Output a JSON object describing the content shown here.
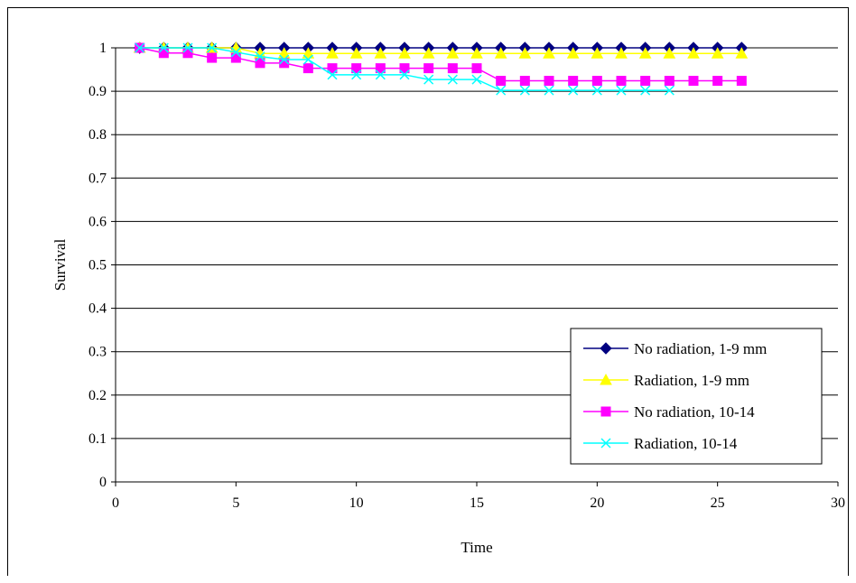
{
  "chart_data": {
    "type": "line",
    "xlabel": "Time",
    "ylabel": "Survival",
    "xlim": [
      0,
      30
    ],
    "ylim": [
      0,
      1
    ],
    "xticks": [
      "0",
      "5",
      "10",
      "15",
      "20",
      "25",
      "30"
    ],
    "yticks": [
      "0",
      "0.1",
      "0.2",
      "0.3",
      "0.4",
      "0.5",
      "0.6",
      "0.7",
      "0.8",
      "0.9",
      "1"
    ],
    "grid": "horizontal",
    "legend_position": "bottom-right",
    "series": [
      {
        "name": "No radiation, 1-9 mm",
        "color": "#000080",
        "marker": "diamond",
        "x": [
          1,
          2,
          3,
          4,
          5,
          6,
          7,
          8,
          9,
          10,
          11,
          12,
          13,
          14,
          15,
          16,
          17,
          18,
          19,
          20,
          21,
          22,
          23,
          24,
          25,
          26
        ],
        "y": [
          1,
          1,
          1,
          1,
          1,
          1,
          1,
          1,
          1,
          1,
          1,
          1,
          1,
          1,
          1,
          1,
          1,
          1,
          1,
          1,
          1,
          1,
          1,
          1,
          1,
          1
        ]
      },
      {
        "name": "Radiation, 1-9 mm",
        "color": "#FFFF00",
        "marker": "triangle",
        "x": [
          1,
          2,
          3,
          4,
          5,
          6,
          7,
          8,
          9,
          10,
          11,
          12,
          13,
          14,
          15,
          16,
          17,
          18,
          19,
          20,
          21,
          22,
          23,
          24,
          25,
          26
        ],
        "y": [
          1,
          1,
          1,
          1,
          1,
          0.987,
          0.987,
          0.987,
          0.987,
          0.987,
          0.987,
          0.987,
          0.987,
          0.987,
          0.987,
          0.987,
          0.987,
          0.987,
          0.987,
          0.987,
          0.987,
          0.987,
          0.987,
          0.987,
          0.987,
          0.987
        ]
      },
      {
        "name": "No radiation, 10-14",
        "color": "#FF00FF",
        "marker": "square",
        "x": [
          1,
          2,
          3,
          4,
          5,
          6,
          7,
          8,
          9,
          10,
          11,
          12,
          13,
          14,
          15,
          16,
          17,
          18,
          19,
          20,
          21,
          22,
          23,
          24,
          25,
          26
        ],
        "y": [
          1,
          0.988,
          0.988,
          0.977,
          0.977,
          0.965,
          0.965,
          0.953,
          0.953,
          0.953,
          0.953,
          0.953,
          0.953,
          0.953,
          0.953,
          0.924,
          0.924,
          0.924,
          0.924,
          0.924,
          0.924,
          0.924,
          0.924,
          0.924,
          0.924,
          0.924
        ]
      },
      {
        "name": "Radiation, 10-14",
        "color": "#00FFFF",
        "marker": "x",
        "x": [
          1,
          2,
          3,
          4,
          5,
          6,
          7,
          8,
          9,
          10,
          11,
          12,
          13,
          14,
          15,
          16,
          17,
          18,
          19,
          20,
          21,
          22,
          23
        ],
        "y": [
          1,
          1,
          1,
          1,
          0.99,
          0.98,
          0.973,
          0.973,
          0.938,
          0.938,
          0.938,
          0.938,
          0.927,
          0.927,
          0.927,
          0.902,
          0.902,
          0.902,
          0.902,
          0.902,
          0.902,
          0.902,
          0.902
        ]
      }
    ]
  }
}
